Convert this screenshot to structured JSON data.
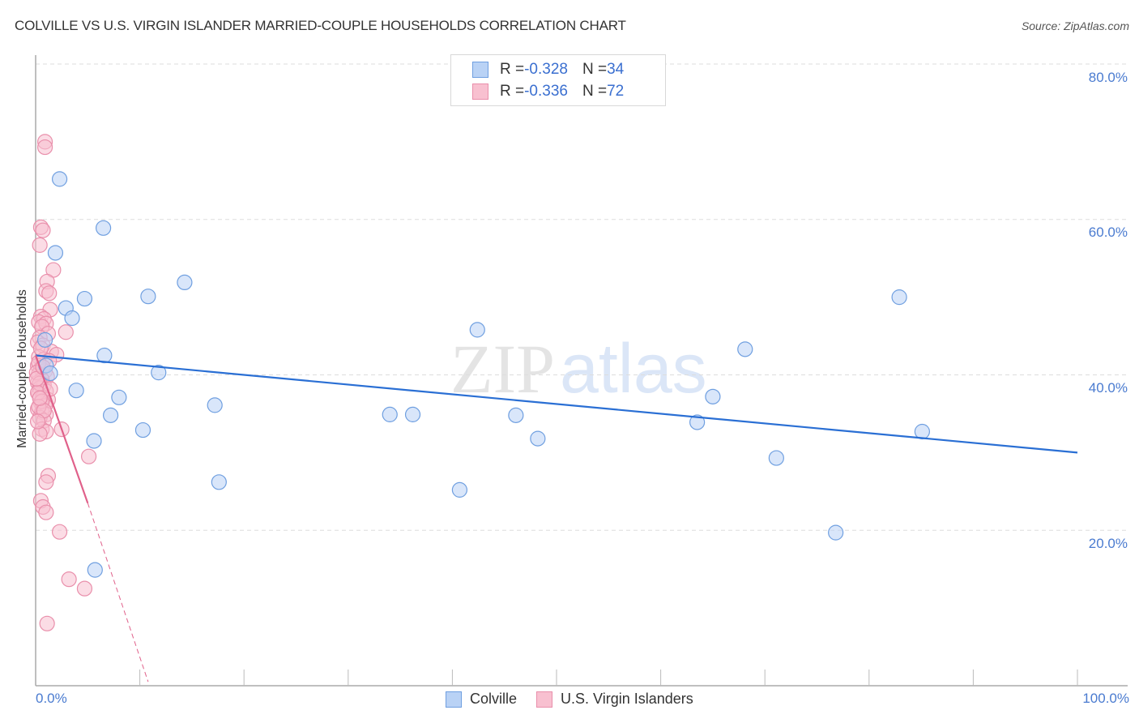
{
  "header": {
    "title": "COLVILLE VS U.S. VIRGIN ISLANDER MARRIED-COUPLE HOUSEHOLDS CORRELATION CHART",
    "source": "Source: ZipAtlas.com"
  },
  "legend_top": {
    "rows": [
      {
        "r_label": "R = ",
        "r_value": "-0.328",
        "n_label": "N = ",
        "n_value": "34"
      },
      {
        "r_label": "R = ",
        "r_value": "-0.336",
        "n_label": "N = ",
        "n_value": "72"
      }
    ]
  },
  "legend_bottom": {
    "items": [
      {
        "label": "Colville"
      },
      {
        "label": "U.S. Virgin Islanders"
      }
    ]
  },
  "axes": {
    "ylabel": "Married-couple Households",
    "yticks": [
      "80.0%",
      "60.0%",
      "40.0%",
      "20.0%"
    ],
    "xticks": [
      "0.0%",
      "100.0%"
    ]
  },
  "watermark": {
    "zip": "ZIP",
    "atlas": "atlas"
  },
  "colors": {
    "colville_fill": "#b9d2f5",
    "colville_stroke": "#6f9fe0",
    "colville_line": "#2a6fd4",
    "usvi_fill": "#f8c0d0",
    "usvi_stroke": "#e98fab",
    "usvi_line": "#e0608a",
    "tick_label": "#4a7bd0",
    "grid": "#dddddd"
  },
  "chart_data": {
    "type": "scatter",
    "title": "COLVILLE VS U.S. VIRGIN ISLANDER MARRIED-COUPLE HOUSEHOLDS CORRELATION CHART",
    "xlabel": "",
    "ylabel": "Married-couple Households",
    "xlim": [
      0,
      100
    ],
    "ylim": [
      0,
      80
    ],
    "x_tick_labels": [
      "0.0%",
      "100.0%"
    ],
    "y_tick_labels": [
      "20.0%",
      "40.0%",
      "60.0%",
      "80.0%"
    ],
    "grid": true,
    "legend_position": "top-center and bottom-center",
    "series": [
      {
        "name": "Colville",
        "R": -0.328,
        "N": 34,
        "points": [
          [
            2.3,
            65.2
          ],
          [
            6.5,
            58.9
          ],
          [
            1.9,
            55.7
          ],
          [
            14.3,
            51.9
          ],
          [
            10.8,
            50.1
          ],
          [
            4.7,
            49.8
          ],
          [
            2.9,
            48.6
          ],
          [
            3.5,
            47.3
          ],
          [
            42.4,
            45.8
          ],
          [
            68.1,
            43.3
          ],
          [
            6.6,
            42.5
          ],
          [
            1.0,
            41.2
          ],
          [
            11.8,
            40.3
          ],
          [
            1.4,
            40.2
          ],
          [
            3.9,
            38.0
          ],
          [
            8.0,
            37.1
          ],
          [
            65.0,
            37.2
          ],
          [
            17.2,
            36.1
          ],
          [
            7.2,
            34.8
          ],
          [
            34.0,
            34.9
          ],
          [
            36.2,
            34.9
          ],
          [
            46.1,
            34.8
          ],
          [
            63.5,
            33.9
          ],
          [
            10.3,
            32.9
          ],
          [
            85.1,
            32.7
          ],
          [
            48.2,
            31.8
          ],
          [
            5.6,
            31.5
          ],
          [
            71.1,
            29.3
          ],
          [
            17.6,
            26.2
          ],
          [
            40.7,
            25.2
          ],
          [
            76.8,
            19.7
          ],
          [
            5.7,
            14.9
          ],
          [
            82.9,
            50.0
          ],
          [
            0.9,
            44.5
          ]
        ],
        "trendline": {
          "x": [
            0,
            100
          ],
          "y": [
            42.5,
            30.0
          ],
          "style": "solid"
        }
      },
      {
        "name": "U.S. Virgin Islanders",
        "R": -0.336,
        "N": 72,
        "points": [
          [
            0.9,
            70.0
          ],
          [
            0.9,
            69.3
          ],
          [
            0.5,
            59.0
          ],
          [
            0.7,
            58.6
          ],
          [
            0.4,
            56.7
          ],
          [
            1.7,
            53.5
          ],
          [
            1.1,
            52.0
          ],
          [
            1.0,
            50.8
          ],
          [
            1.3,
            50.5
          ],
          [
            1.4,
            48.4
          ],
          [
            0.5,
            47.5
          ],
          [
            0.8,
            47.2
          ],
          [
            0.3,
            46.8
          ],
          [
            1.0,
            46.6
          ],
          [
            0.6,
            46.2
          ],
          [
            2.9,
            45.5
          ],
          [
            1.2,
            45.3
          ],
          [
            0.4,
            44.8
          ],
          [
            0.2,
            44.2
          ],
          [
            0.7,
            43.8
          ],
          [
            1.5,
            43.0
          ],
          [
            2.0,
            42.6
          ],
          [
            0.3,
            42.3
          ],
          [
            0.8,
            42.0
          ],
          [
            1.3,
            41.8
          ],
          [
            0.2,
            41.2
          ],
          [
            0.5,
            40.8
          ],
          [
            0.9,
            40.5
          ],
          [
            0.3,
            40.1
          ],
          [
            1.1,
            39.8
          ],
          [
            0.6,
            39.4
          ],
          [
            0.2,
            39.0
          ],
          [
            0.8,
            38.7
          ],
          [
            0.4,
            38.3
          ],
          [
            1.0,
            37.9
          ],
          [
            0.3,
            37.5
          ],
          [
            0.7,
            37.1
          ],
          [
            1.2,
            36.8
          ],
          [
            0.5,
            36.4
          ],
          [
            0.9,
            36.0
          ],
          [
            0.2,
            35.6
          ],
          [
            0.6,
            35.2
          ],
          [
            1.0,
            34.9
          ],
          [
            0.4,
            34.5
          ],
          [
            0.8,
            34.1
          ],
          [
            2.5,
            33.0
          ],
          [
            0.6,
            33.0
          ],
          [
            1.0,
            32.7
          ],
          [
            0.4,
            32.4
          ],
          [
            5.1,
            29.5
          ],
          [
            1.2,
            27.0
          ],
          [
            1.0,
            26.2
          ],
          [
            0.5,
            23.8
          ],
          [
            0.7,
            23.0
          ],
          [
            1.0,
            22.3
          ],
          [
            2.3,
            19.8
          ],
          [
            3.2,
            13.7
          ],
          [
            4.7,
            12.5
          ],
          [
            1.1,
            8.0
          ],
          [
            0.3,
            41.6
          ],
          [
            0.1,
            40.3
          ],
          [
            0.4,
            38.9
          ],
          [
            0.2,
            37.7
          ],
          [
            0.6,
            36.6
          ],
          [
            0.3,
            35.9
          ],
          [
            0.8,
            35.4
          ],
          [
            0.2,
            34.0
          ],
          [
            1.4,
            38.2
          ],
          [
            0.5,
            43.4
          ],
          [
            0.1,
            39.5
          ],
          [
            0.7,
            41.0
          ],
          [
            0.4,
            37.0
          ]
        ],
        "trendline": {
          "x": [
            0,
            5.0,
            10.8
          ],
          "y": [
            42.5,
            23.5,
            0.5
          ],
          "style": "solid then dashed after x=5"
        }
      }
    ]
  }
}
